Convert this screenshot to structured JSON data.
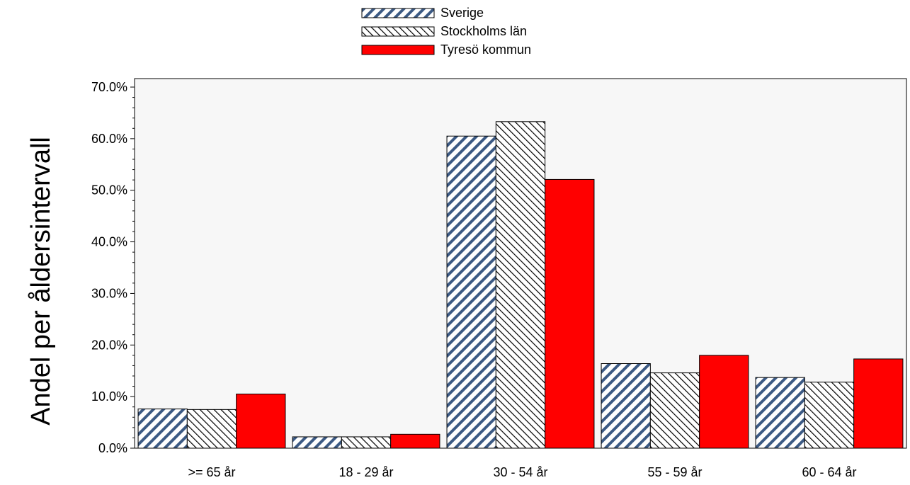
{
  "chart_data": {
    "type": "bar",
    "title": "",
    "xlabel": "",
    "ylabel": "Andel per åldersintervall",
    "categories": [
      ">= 65 år",
      "18 - 29 år",
      "30 - 54 år",
      "55 - 59 år",
      "60 - 64 år"
    ],
    "series": [
      {
        "name": "Sverige",
        "values": [
          7.6,
          2.2,
          60.5,
          16.4,
          13.7
        ],
        "pattern": "hatch-blue"
      },
      {
        "name": "Stockholms län",
        "values": [
          7.5,
          2.2,
          63.3,
          14.6,
          12.8
        ],
        "pattern": "hatch-black"
      },
      {
        "name": "Tyresö kommun",
        "values": [
          10.5,
          2.7,
          52.1,
          18.0,
          17.3
        ],
        "pattern": "solid-red"
      }
    ],
    "ylim": [
      0,
      70
    ],
    "yticks": [
      "0.0%",
      "10.0%",
      "20.0%",
      "30.0%",
      "40.0%",
      "50.0%",
      "60.0%",
      "70.0%"
    ],
    "grid": false,
    "legend_position": "top-center",
    "colors": {
      "plot_bg": "#f7f7f7",
      "red": "#ff0000",
      "blue_stripe": "#3c5a84"
    }
  }
}
